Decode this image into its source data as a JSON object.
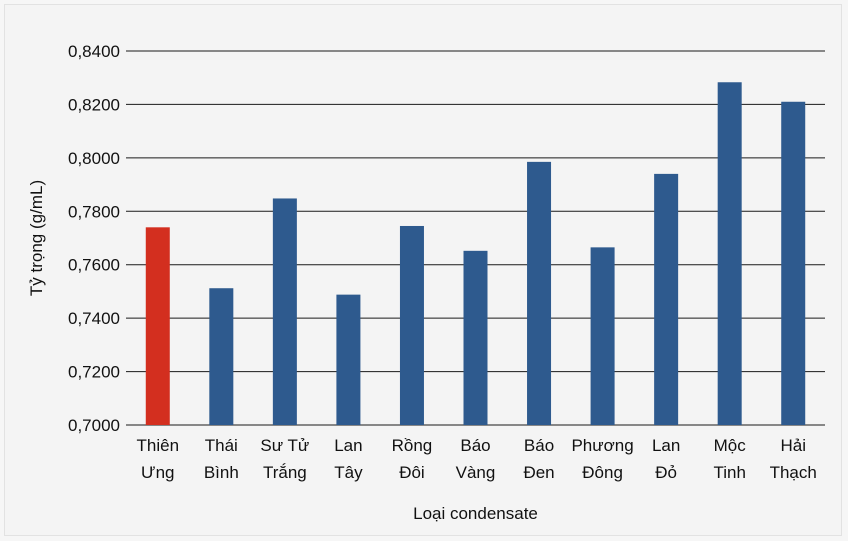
{
  "chart_data": {
    "type": "bar",
    "title": "",
    "xlabel": "Loại condensate",
    "ylabel": "Tỷ trọng (g/mL)",
    "ylim": [
      0.7,
      0.84
    ],
    "yticks": [
      "0,7000",
      "0,7200",
      "0,7400",
      "0,7600",
      "0,7800",
      "0,8000",
      "0,8200",
      "0,8400"
    ],
    "grid": true,
    "categories": [
      [
        "Thiên",
        "Ưng"
      ],
      [
        "Thái",
        "Bình"
      ],
      [
        "Sư Tử",
        "Trắng"
      ],
      [
        "Lan",
        "Tây"
      ],
      [
        "Rồng",
        "Đôi"
      ],
      [
        "Báo",
        "Vàng"
      ],
      [
        "Báo",
        "Đen"
      ],
      [
        "Phương",
        "Đông"
      ],
      [
        "Lan",
        "Đỏ"
      ],
      [
        "Mộc",
        "Tinh"
      ],
      [
        "Hải",
        "Thạch"
      ]
    ],
    "values": [
      0.774,
      0.7512,
      0.7848,
      0.7488,
      0.7745,
      0.7652,
      0.7985,
      0.7665,
      0.794,
      0.8283,
      0.821
    ],
    "colors": {
      "highlight": "#d32f1f",
      "bar": "#2e5a8e",
      "grid": "#1a1a1a"
    },
    "highlight_index": 0
  }
}
